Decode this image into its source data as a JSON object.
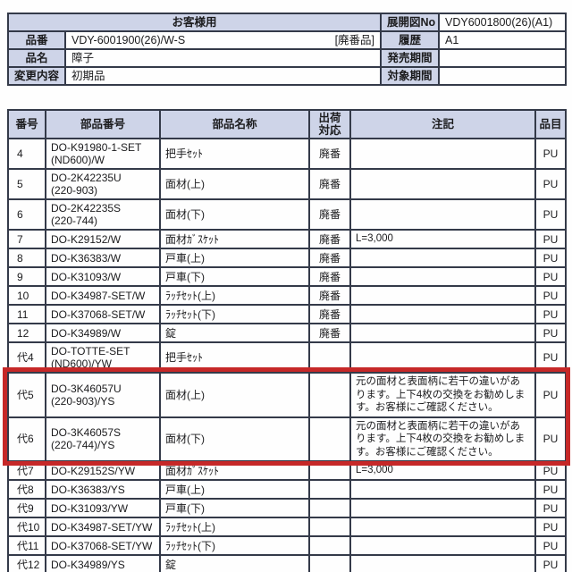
{
  "colors": {
    "header_bg": "#ced4e8",
    "border": "#343a49",
    "highlight_red": "#c62828",
    "text": "#1b1b1d",
    "page_bg": "#fefefe"
  },
  "info_table": {
    "customer_label": "お客様用",
    "drawing_no_label": "展開図No",
    "drawing_no_value": "VDY6001800(26)(A1)",
    "rows": [
      {
        "label": "品番",
        "value": "VDY-6001900(26)/W-S",
        "extra": "[廃番品]",
        "right_label": "履歴",
        "right_value": "A1"
      },
      {
        "label": "品名",
        "value": "障子",
        "extra": "",
        "right_label": "発売期間",
        "right_value": ""
      },
      {
        "label": "変更内容",
        "value": "初期品",
        "extra": "",
        "right_label": "対象期間",
        "right_value": ""
      }
    ]
  },
  "parts_table": {
    "headers": [
      "番号",
      "部品番号",
      "部品名称",
      "出荷\n対応",
      "注記",
      "品目"
    ],
    "highlight_rows": [
      10,
      11
    ],
    "rows": [
      {
        "no": "4",
        "part_no": "DO-K91980-1-SET\n(ND600)/W",
        "name": "把手ｾｯﾄ",
        "ship": "廃番",
        "note": "",
        "item": "PU"
      },
      {
        "no": "5",
        "part_no": "DO-2K42235U\n(220-903)",
        "name": "面材(上)",
        "ship": "廃番",
        "note": "",
        "item": "PU"
      },
      {
        "no": "6",
        "part_no": "DO-2K42235S\n(220-744)",
        "name": "面材(下)",
        "ship": "廃番",
        "note": "",
        "item": "PU"
      },
      {
        "no": "7",
        "part_no": "DO-K29152/W",
        "name": "面材ｶﾞｽｹｯﾄ",
        "ship": "廃番",
        "note": "L=3,000",
        "item": "PU"
      },
      {
        "no": "8",
        "part_no": "DO-K36383/W",
        "name": "戸車(上)",
        "ship": "廃番",
        "note": "",
        "item": "PU"
      },
      {
        "no": "9",
        "part_no": "DO-K31093/W",
        "name": "戸車(下)",
        "ship": "廃番",
        "note": "",
        "item": "PU"
      },
      {
        "no": "10",
        "part_no": "DO-K34987-SET/W",
        "name": "ﾗｯﾁｾｯﾄ(上)",
        "ship": "廃番",
        "note": "",
        "item": "PU"
      },
      {
        "no": "11",
        "part_no": "DO-K37068-SET/W",
        "name": "ﾗｯﾁｾｯﾄ(下)",
        "ship": "廃番",
        "note": "",
        "item": "PU"
      },
      {
        "no": "12",
        "part_no": "DO-K34989/W",
        "name": "錠",
        "ship": "廃番",
        "note": "",
        "item": "PU"
      },
      {
        "no": "代4",
        "part_no": "DO-TOTTE-SET\n(ND600)/YW",
        "name": "把手ｾｯﾄ",
        "ship": "",
        "note": "",
        "item": "PU"
      },
      {
        "no": "代5",
        "part_no": "DO-3K46057U\n(220-903)/YS",
        "name": "面材(上)",
        "ship": "",
        "note": "元の面材と表面柄に若干の違いがあります。上下4枚の交換をお勧めします。お客様にご確認ください。",
        "item": "PU"
      },
      {
        "no": "代6",
        "part_no": "DO-3K46057S\n(220-744)/YS",
        "name": "面材(下)",
        "ship": "",
        "note": "元の面材と表面柄に若干の違いがあります。上下4枚の交換をお勧めします。お客様にご確認ください。",
        "item": "PU"
      },
      {
        "no": "代7",
        "part_no": "DO-K29152S/YW",
        "name": "面材ｶﾞｽｹｯﾄ",
        "ship": "",
        "note": "L=3,000",
        "item": "PU"
      },
      {
        "no": "代8",
        "part_no": "DO-K36383/YS",
        "name": "戸車(上)",
        "ship": "",
        "note": "",
        "item": "PU"
      },
      {
        "no": "代9",
        "part_no": "DO-K31093/YW",
        "name": "戸車(下)",
        "ship": "",
        "note": "",
        "item": "PU"
      },
      {
        "no": "代10",
        "part_no": "DO-K34987-SET/YW",
        "name": "ﾗｯﾁｾｯﾄ(上)",
        "ship": "",
        "note": "",
        "item": "PU"
      },
      {
        "no": "代11",
        "part_no": "DO-K37068-SET/YW",
        "name": "ﾗｯﾁｾｯﾄ(下)",
        "ship": "",
        "note": "",
        "item": "PU"
      },
      {
        "no": "代12",
        "part_no": "DO-K34989/YS",
        "name": "錠",
        "ship": "",
        "note": "",
        "item": "PU"
      }
    ]
  }
}
